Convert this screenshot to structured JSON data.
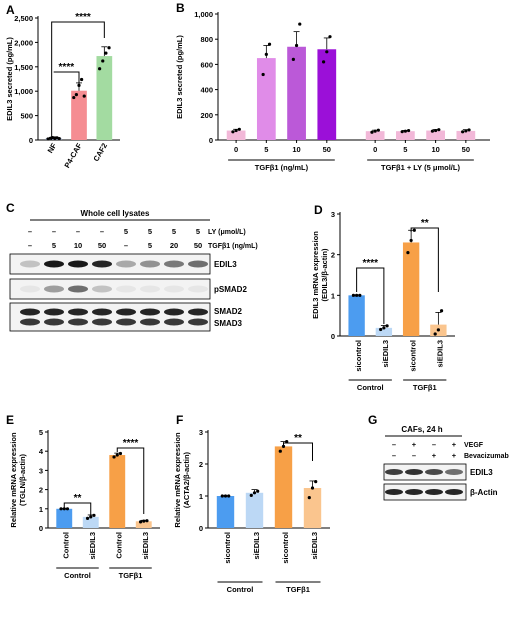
{
  "panels": {
    "A": {
      "letter": "A",
      "chart_data": {
        "type": "bar",
        "title": "",
        "xlabel": "",
        "ylabel": "EDIL3 secreted (pg/mL)",
        "ylim": [
          0,
          2500
        ],
        "yticks": [
          "0",
          "500",
          "1,000",
          "1,500",
          "2,000",
          "2,500"
        ],
        "tick_values": [
          0,
          500,
          1000,
          1500,
          2000,
          2500
        ],
        "categories": [
          "NF",
          "P4-CAF",
          "CAF2"
        ],
        "values": [
          40,
          1010,
          1720
        ],
        "errors": [
          25,
          160,
          190
        ],
        "colors": [
          "#9aa9c7",
          "#f58d92",
          "#a3dba1"
        ],
        "points": [
          [
            20,
            35,
            50,
            30,
            45,
            28
          ],
          [
            870,
            930,
            1120,
            1240,
            900
          ],
          [
            1460,
            1620,
            1780,
            1890
          ]
        ],
        "significance": [
          "****",
          "****"
        ]
      }
    },
    "B": {
      "letter": "B",
      "chart_data": {
        "type": "bar",
        "title": "",
        "ylabel": "EDIL3 secreted (pg/mL)",
        "ylim": [
          0,
          1000
        ],
        "yticks": [
          "0",
          "200",
          "400",
          "600",
          "800",
          "1,000"
        ],
        "tick_values": [
          0,
          200,
          400,
          600,
          800,
          1000
        ],
        "categories": [
          "0",
          "5",
          "10",
          "50",
          "0",
          "5",
          "10",
          "50"
        ],
        "values": [
          75,
          650,
          740,
          720,
          70,
          70,
          75,
          72
        ],
        "errors": [
          10,
          100,
          120,
          90,
          8,
          6,
          8,
          10
        ],
        "colors": [
          "#f2b8d8",
          "#e08ce8",
          "#bb59d8",
          "#9b10d8",
          "#f2b8d8",
          "#f2b8d8",
          "#f2b8d8",
          "#f2b8d8"
        ],
        "points": [
          [
            65,
            75,
            85
          ],
          [
            520,
            680,
            760
          ],
          [
            640,
            750,
            920
          ],
          [
            620,
            700,
            820
          ],
          [
            62,
            70,
            78
          ],
          [
            66,
            70,
            75
          ],
          [
            70,
            75,
            82
          ],
          [
            65,
            72,
            80
          ]
        ],
        "group_labels": [
          "TGFβ1 (ng/mL)",
          "TGFβ1 + LY (5 μmol/L)"
        ]
      }
    },
    "C": {
      "letter": "C",
      "header": "Whole cell lysates",
      "ly_row": [
        "–",
        "–",
        "–",
        "–",
        "5",
        "5",
        "5",
        "5"
      ],
      "ly_label": "LY (μmol/L)",
      "tgf_row": [
        "–",
        "5",
        "10",
        "50",
        "–",
        "5",
        "20",
        "50"
      ],
      "tgf_label": "TGFβ1 (ng/mL)",
      "blots": [
        {
          "label": "EDIL3",
          "bands": [
            0.2,
            0.9,
            0.9,
            0.85,
            0.3,
            0.4,
            0.5,
            0.55
          ]
        },
        {
          "label": "pSMAD2",
          "bands": [
            0.05,
            0.35,
            0.55,
            0.2,
            0.05,
            0.05,
            0.05,
            0.05
          ]
        },
        {
          "label": "SMAD2",
          "label2": "SMAD3",
          "bands": [
            0.85,
            0.85,
            0.85,
            0.85,
            0.85,
            0.85,
            0.85,
            0.85
          ]
        }
      ]
    },
    "D": {
      "letter": "D",
      "chart_data": {
        "type": "bar",
        "ylabel": "EDIL3 mRNA expression",
        "ylabel2": "(EDIL3/β-actin)",
        "ylim": [
          0,
          3
        ],
        "yticks": [
          "0",
          "1",
          "2",
          "3"
        ],
        "tick_values": [
          0,
          1,
          2,
          3
        ],
        "categories": [
          "sicontrol",
          "siEDIL3",
          "sicontrol",
          "siEDIL3"
        ],
        "values": [
          1.0,
          0.2,
          2.3,
          0.28
        ],
        "errors": [
          0.01,
          0.06,
          0.3,
          0.3
        ],
        "colors": [
          "#4c9cf0",
          "#bcd8f5",
          "#f7a047",
          "#fac58e"
        ],
        "points": [
          [
            1.0,
            1.0,
            1.0
          ],
          [
            0.16,
            0.2,
            0.25
          ],
          [
            2.05,
            2.35,
            2.6
          ],
          [
            0.05,
            0.15,
            0.62
          ]
        ],
        "significance": [
          "****",
          "**"
        ],
        "group_labels": [
          "Control",
          "TGFβ1"
        ]
      }
    },
    "E": {
      "letter": "E",
      "chart_data": {
        "type": "bar",
        "ylabel": "Relative mRNA expression",
        "ylabel2": "(TGLN/β-actin)",
        "ylim": [
          0,
          5
        ],
        "yticks": [
          "0",
          "1",
          "2",
          "3",
          "4",
          "5"
        ],
        "tick_values": [
          0,
          1,
          2,
          3,
          4,
          5
        ],
        "categories": [
          "Control",
          "siEDIL3",
          "Control",
          "siEDIL3"
        ],
        "values": [
          1.0,
          0.58,
          3.8,
          0.35
        ],
        "errors": [
          0.01,
          0.1,
          0.1,
          0.05
        ],
        "colors": [
          "#4c9cf0",
          "#bcd8f5",
          "#f7a047",
          "#fac58e"
        ],
        "points": [
          [
            1.0,
            1.0,
            1.0
          ],
          [
            0.5,
            0.58,
            0.66
          ],
          [
            3.7,
            3.8,
            3.88
          ],
          [
            0.32,
            0.36,
            0.38
          ]
        ],
        "significance": [
          "**",
          "****"
        ],
        "group_labels": [
          "Control",
          "TGFβ1"
        ]
      }
    },
    "F": {
      "letter": "F",
      "chart_data": {
        "type": "bar",
        "ylabel": "Relative mRNA expression",
        "ylabel2": "(ACTA2/β-actin)",
        "ylim": [
          0,
          3
        ],
        "yticks": [
          "0",
          "1",
          "2",
          "3"
        ],
        "tick_values": [
          0,
          1,
          2,
          3
        ],
        "categories": [
          "sicontrol",
          "siEDIL3",
          "sicontrol",
          "siEDIL3"
        ],
        "values": [
          1.0,
          1.1,
          2.55,
          1.25
        ],
        "errors": [
          0.01,
          0.1,
          0.15,
          0.22
        ],
        "colors": [
          "#4c9cf0",
          "#bcd8f5",
          "#f7a047",
          "#fac58e"
        ],
        "points": [
          [
            1.0,
            1.0,
            1.0
          ],
          [
            1.02,
            1.1,
            1.15
          ],
          [
            2.4,
            2.55,
            2.7
          ],
          [
            0.95,
            1.25,
            1.45
          ]
        ],
        "significance": [
          "**"
        ],
        "group_labels": [
          "Control",
          "TGFβ1"
        ]
      }
    },
    "G": {
      "letter": "G",
      "header": "CAFs, 24 h",
      "vegf_row": [
        "–",
        "+",
        "–",
        "+"
      ],
      "vegf_label": "VEGF",
      "bev_row": [
        "–",
        "–",
        "+",
        "+"
      ],
      "bev_label": "Bevacizumab",
      "blots": [
        {
          "label": "EDIL3",
          "bands": [
            0.75,
            0.8,
            0.7,
            0.55
          ]
        },
        {
          "label": "β-Actin",
          "bands": [
            0.85,
            0.85,
            0.85,
            0.85
          ]
        }
      ]
    }
  }
}
